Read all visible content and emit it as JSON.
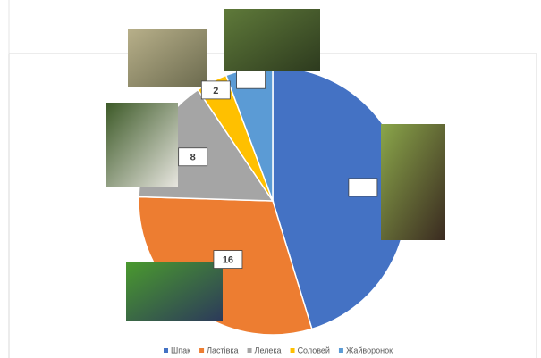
{
  "chart_data": {
    "type": "pie",
    "categories": [
      "Шпак",
      "Ластівка",
      "Лелека",
      "Соловей",
      "Жайворонок"
    ],
    "values": [
      24,
      16,
      8,
      2,
      3
    ],
    "colors": [
      "#4472c4",
      "#ed7d31",
      "#a5a5a5",
      "#ffc000",
      "#5b9bd5"
    ],
    "printed_labels": [
      false,
      true,
      true,
      true,
      false
    ]
  }
}
